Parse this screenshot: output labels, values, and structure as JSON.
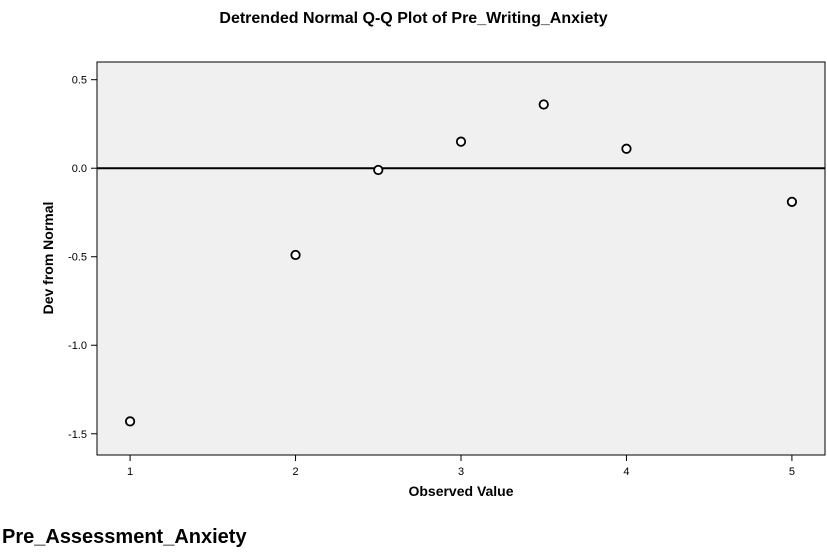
{
  "chart_data": {
    "type": "scatter",
    "title": "Detrended Normal Q-Q Plot of Pre_Writing_Anxiety",
    "xlabel": "Observed Value",
    "ylabel": "Dev from Normal",
    "x": [
      1,
      2,
      2.5,
      3,
      3.5,
      4,
      5
    ],
    "y": [
      -1.43,
      -0.49,
      -0.01,
      0.15,
      0.36,
      0.11,
      -0.19
    ],
    "xlim": [
      0.8,
      5.2
    ],
    "ylim": [
      -1.62,
      0.6
    ],
    "xticks": [
      1,
      2,
      3,
      4,
      5
    ],
    "xtick_labels": [
      "1",
      "2",
      "3",
      "4",
      "5"
    ],
    "yticks": [
      0.5,
      0.0,
      -0.5,
      -1.0,
      -1.5
    ],
    "ytick_labels": [
      "0.5",
      "0.0",
      "-0.5",
      "-1.0",
      "-1.5"
    ],
    "reference_line_y": 0,
    "grid": false,
    "marker": "open-circle",
    "colors": {
      "plot_background": "#f0f0f0",
      "marker": "#000000",
      "line": "#000000"
    }
  },
  "section_heading": "Pre_Assessment_Anxiety"
}
